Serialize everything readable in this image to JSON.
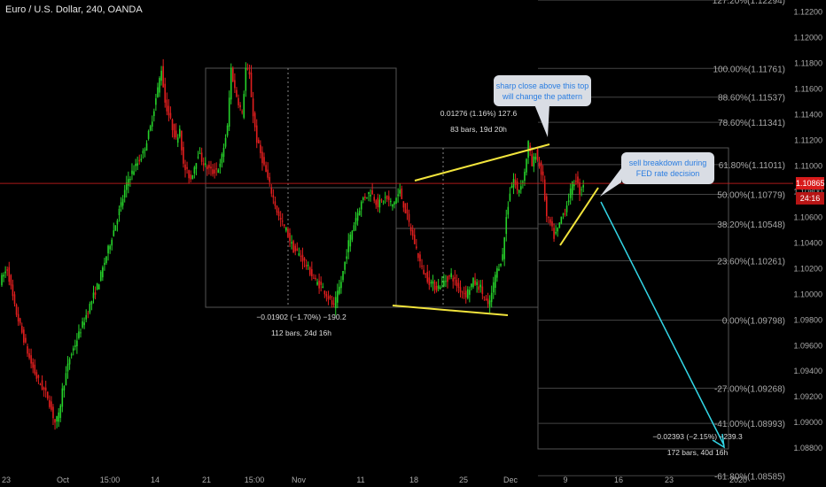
{
  "header": {
    "title": "Euro / U.S. Dollar, 240, OANDA"
  },
  "price_axis": {
    "ticks": [
      "1.12200",
      "1.12000",
      "1.11800",
      "1.11600",
      "1.11400",
      "1.11200",
      "1.11000",
      "1.10800",
      "1.10600",
      "1.10400",
      "1.10200",
      "1.10000",
      "1.09800",
      "1.09600",
      "1.09400",
      "1.09200",
      "1.09000",
      "1.08800"
    ],
    "current_price": "1.10865",
    "countdown": "24:16"
  },
  "time_axis": {
    "labels": [
      "23",
      "Oct",
      "15:00",
      "14",
      "21",
      "15:00",
      "Nov",
      "11",
      "18",
      "25",
      "Dec",
      "9",
      "16",
      "23",
      "2020"
    ]
  },
  "fib_levels": [
    {
      "label": "127.20%(1.12294)",
      "price": 1.12294
    },
    {
      "label": "100.00%(1.11761)",
      "price": 1.11761
    },
    {
      "label": "88.60%(1.11537)",
      "price": 1.11537
    },
    {
      "label": "78.60%(1.11341)",
      "price": 1.11341
    },
    {
      "label": "61.80%(1.11011)",
      "price": 1.11011
    },
    {
      "label": "50.00%(1.10779)",
      "price": 1.10779
    },
    {
      "label": "38.20%(1.10548)",
      "price": 1.10548
    },
    {
      "label": "23.60%(1.10261)",
      "price": 1.10261
    },
    {
      "label": "0.00%(1.09798)",
      "price": 1.09798
    },
    {
      "label": "-27.00%(1.09268)",
      "price": 1.09268
    },
    {
      "label": "-41.00%(1.08993)",
      "price": 1.08993
    },
    {
      "label": "-61.80%(1.08585)",
      "price": 1.08585
    }
  ],
  "measurements": [
    {
      "line1": "−0.01902 (−1.70%) −190.2",
      "line2": "112 bars, 24d 16h"
    },
    {
      "line1": "0.01276 (1.16%) 127.6",
      "line2": "83 bars, 19d 20h"
    },
    {
      "line1": "−0.02393 (−2.15%) −239.3",
      "line2": "172 bars, 40d 16h"
    }
  ],
  "callouts": [
    {
      "lines": [
        "sharp close above this top",
        "will change the pattern"
      ]
    },
    {
      "lines": [
        "sell breakdown during",
        "FED rate decision"
      ]
    }
  ],
  "colors": {
    "up": "#26d12a",
    "down": "#e01e1e",
    "trendline": "#f2e43c",
    "projection": "#33d6e6",
    "callout_bg": "#d9dde4",
    "callout_text": "#2a7de1",
    "price_line": "#c81e1e",
    "box": "#555555"
  },
  "chart_data": {
    "type": "candlestick",
    "symbol": "Euro / U.S. Dollar",
    "interval": "240",
    "source": "OANDA",
    "price_path": [
      [
        0,
        1.101
      ],
      [
        4,
        1.102
      ],
      [
        8,
        1.099
      ],
      [
        12,
        1.097
      ],
      [
        16,
        1.095
      ],
      [
        20,
        1.0935
      ],
      [
        24,
        1.0925
      ],
      [
        26,
        1.092
      ],
      [
        28,
        1.091
      ],
      [
        30,
        1.09
      ],
      [
        32,
        1.0905
      ],
      [
        34,
        1.0925
      ],
      [
        38,
        1.095
      ],
      [
        42,
        1.0965
      ],
      [
        46,
        1.098
      ],
      [
        50,
        1.0995
      ],
      [
        54,
        1.101
      ],
      [
        58,
        1.103
      ],
      [
        62,
        1.105
      ],
      [
        66,
        1.107
      ],
      [
        70,
        1.109
      ],
      [
        74,
        1.11
      ],
      [
        78,
        1.111
      ],
      [
        82,
        1.113
      ],
      [
        86,
        1.116
      ],
      [
        88,
        1.1176
      ],
      [
        90,
        1.115
      ],
      [
        92,
        1.114
      ],
      [
        96,
        1.112
      ],
      [
        98,
        1.113
      ],
      [
        100,
        1.11
      ],
      [
        104,
        1.109
      ],
      [
        108,
        1.111
      ],
      [
        112,
        1.11
      ],
      [
        116,
        1.1095
      ],
      [
        120,
        1.11
      ],
      [
        124,
        1.113
      ],
      [
        126,
        1.1176
      ],
      [
        128,
        1.116
      ],
      [
        132,
        1.114
      ],
      [
        134,
        1.1176
      ],
      [
        136,
        1.117
      ],
      [
        138,
        1.114
      ],
      [
        140,
        1.112
      ],
      [
        144,
        1.11
      ],
      [
        148,
        1.108
      ],
      [
        152,
        1.106
      ],
      [
        156,
        1.105
      ],
      [
        160,
        1.1035
      ],
      [
        164,
        1.103
      ],
      [
        168,
        1.102
      ],
      [
        172,
        1.101
      ],
      [
        176,
        1.1005
      ],
      [
        180,
        1.0995
      ],
      [
        182,
        1.099
      ],
      [
        186,
        1.101
      ],
      [
        190,
        1.104
      ],
      [
        194,
        1.106
      ],
      [
        198,
        1.1075
      ],
      [
        202,
        1.108
      ],
      [
        206,
        1.107
      ],
      [
        210,
        1.1075
      ],
      [
        214,
        1.107
      ],
      [
        218,
        1.108
      ],
      [
        222,
        1.106
      ],
      [
        226,
        1.104
      ],
      [
        230,
        1.102
      ],
      [
        234,
        1.101
      ],
      [
        238,
        1.1005
      ],
      [
        242,
        1.101
      ],
      [
        246,
        1.1015
      ],
      [
        250,
        1.1005
      ],
      [
        254,
        1.1
      ],
      [
        258,
        1.101
      ],
      [
        262,
        1.1005
      ],
      [
        266,
        1.099
      ],
      [
        268,
        1.1
      ],
      [
        270,
        1.1015
      ],
      [
        274,
        1.103
      ],
      [
        276,
        1.106
      ],
      [
        278,
        1.108
      ],
      [
        280,
        1.109
      ],
      [
        282,
        1.108
      ],
      [
        284,
        1.1085
      ],
      [
        286,
        1.1095
      ],
      [
        288,
        1.1118
      ],
      [
        290,
        1.11
      ],
      [
        292,
        1.111
      ],
      [
        294,
        1.11
      ],
      [
        296,
        1.109
      ],
      [
        298,
        1.106
      ],
      [
        300,
        1.1055
      ],
      [
        302,
        1.1045
      ],
      [
        304,
        1.105
      ],
      [
        306,
        1.106
      ],
      [
        308,
        1.1065
      ],
      [
        310,
        1.1075
      ],
      [
        312,
        1.1085
      ],
      [
        314,
        1.109
      ],
      [
        316,
        1.108
      ],
      [
        318,
        1.10865
      ]
    ],
    "current_price": 1.10865,
    "ylim": [
      1.0858,
      1.1235
    ]
  }
}
